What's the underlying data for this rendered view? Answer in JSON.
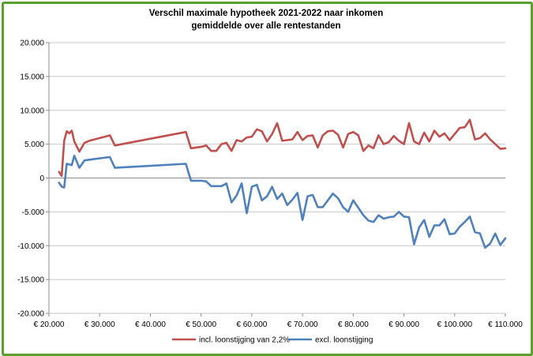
{
  "chart_data": {
    "type": "line",
    "title": "Verschil maximale hypotheek 2021-2022 naar inkomen",
    "subtitle": "gemiddelde over alle rentestanden",
    "xlabel": "",
    "ylabel": "",
    "xlim": [
      20000,
      110000
    ],
    "ylim": [
      -20000,
      20000
    ],
    "x_ticks": [
      20000,
      30000,
      40000,
      50000,
      60000,
      70000,
      80000,
      90000,
      100000,
      110000
    ],
    "x_tick_labels": [
      "€ 20.000",
      "€ 30.000",
      "€ 40.000",
      "€ 50.000",
      "€ 60.000",
      "€ 70.000",
      "€ 80.000",
      "€ 90.000",
      "€ 100.000",
      "€ 110.000"
    ],
    "y_ticks": [
      20000,
      15000,
      10000,
      5000,
      0,
      -5000,
      -10000,
      -15000,
      -20000
    ],
    "y_tick_labels": [
      "20.000",
      "15.000",
      "10.000",
      "5.000",
      "0",
      "-5.000",
      "-10.000",
      "-15.000",
      "-20.000"
    ],
    "grid": "horizontal",
    "legend_position": "bottom",
    "series": [
      {
        "name": "incl. loonstijging van 2,2%",
        "color": "#c0504d",
        "x": [
          22000,
          22500,
          23000,
          23500,
          24000,
          24500,
          25000,
          26000,
          27000,
          28000,
          32000,
          33000,
          47000,
          48000,
          50000,
          51000,
          52000,
          53000,
          54000,
          55000,
          56000,
          57000,
          58000,
          59000,
          60000,
          61000,
          62000,
          63000,
          64000,
          65000,
          66000,
          67000,
          68000,
          69000,
          70000,
          71000,
          72000,
          73000,
          74000,
          75000,
          76000,
          77000,
          78000,
          79000,
          80000,
          81000,
          82000,
          83000,
          84000,
          85000,
          86000,
          87000,
          88000,
          89000,
          90000,
          91000,
          92000,
          93000,
          94000,
          95000,
          96000,
          97000,
          98000,
          99000,
          100000,
          101000,
          102000,
          103000,
          104000,
          105000,
          106000,
          107000,
          108000,
          109000,
          110000
        ],
        "values": [
          900,
          300,
          5500,
          6900,
          6600,
          7000,
          5400,
          3900,
          5200,
          5500,
          6300,
          4800,
          6800,
          4400,
          4600,
          4800,
          4000,
          4000,
          5000,
          5200,
          4000,
          5600,
          5400,
          6000,
          6100,
          7200,
          6900,
          5400,
          6500,
          8100,
          5500,
          5600,
          5700,
          6800,
          5600,
          6200,
          6300,
          4500,
          6300,
          6900,
          7000,
          6400,
          4500,
          6500,
          6800,
          6300,
          4000,
          4800,
          4400,
          6300,
          5000,
          5300,
          6200,
          5500,
          5000,
          8100,
          5400,
          5000,
          6700,
          5400,
          7000,
          6100,
          6600,
          5600,
          6500,
          7400,
          7500,
          8600,
          5700,
          5900,
          6600,
          5700,
          5000,
          4300,
          4400
        ]
      },
      {
        "name": "excl. loonstijging",
        "color": "#4f81bd",
        "x": [
          22000,
          22500,
          23000,
          23500,
          24000,
          24500,
          25000,
          26000,
          27000,
          28000,
          32000,
          33000,
          40000,
          47000,
          48000,
          50000,
          51000,
          52000,
          53000,
          54000,
          55000,
          56000,
          57000,
          58000,
          59000,
          60000,
          61000,
          62000,
          63000,
          64000,
          65000,
          66000,
          67000,
          68000,
          69000,
          70000,
          71000,
          72000,
          73000,
          74000,
          75000,
          76000,
          77000,
          78000,
          79000,
          80000,
          81000,
          82000,
          83000,
          84000,
          85000,
          86000,
          87000,
          88000,
          89000,
          90000,
          91000,
          92000,
          93000,
          94000,
          95000,
          96000,
          97000,
          98000,
          99000,
          100000,
          101000,
          102000,
          103000,
          104000,
          105000,
          106000,
          107000,
          108000,
          109000,
          110000
        ],
        "values": [
          -700,
          -1300,
          -1400,
          2100,
          2000,
          1900,
          3300,
          1500,
          2600,
          2700,
          3100,
          1500,
          1800,
          2100,
          -400,
          -400,
          -500,
          -1200,
          -1200,
          -1200,
          -800,
          -3600,
          -2600,
          -800,
          -5200,
          -1300,
          -1000,
          -3300,
          -2700,
          -1300,
          -3100,
          -2300,
          -4000,
          -3200,
          -2200,
          -6200,
          -2700,
          -2500,
          -4300,
          -4300,
          -3300,
          -2300,
          -3000,
          -4300,
          -5000,
          -3300,
          -4400,
          -5500,
          -6300,
          -6500,
          -5500,
          -6000,
          -5800,
          -5700,
          -5000,
          -5700,
          -5800,
          -9800,
          -7300,
          -6200,
          -8700,
          -7000,
          -7000,
          -6100,
          -8300,
          -8200,
          -7200,
          -6500,
          -5700,
          -8000,
          -8200,
          -10300,
          -9700,
          -8200,
          -9900,
          -8900
        ]
      }
    ]
  }
}
